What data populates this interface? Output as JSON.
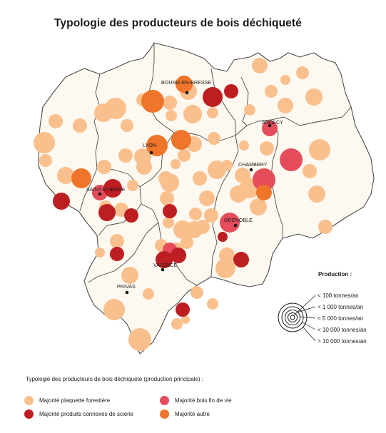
{
  "title": "Typologie des producteurs de bois déchiqueté",
  "colors": {
    "land": "#fdf8f0",
    "border": "#4a4a4a",
    "forestiere": "#f9c08e",
    "connexes": "#bd1e22",
    "fin_de_vie": "#e54d5c",
    "autre": "#ee7529"
  },
  "cities": [
    {
      "name": "BOURG-EN-BRESSE"
    },
    {
      "name": "ANNECY"
    },
    {
      "name": "LYON"
    },
    {
      "name": "CHAMBERY"
    },
    {
      "name": "SAINT-ETIENNE"
    },
    {
      "name": "GRENOBLE"
    },
    {
      "name": "VALENCE"
    },
    {
      "name": "PRIVAS"
    }
  ],
  "production_legend": {
    "title": "Production :",
    "classes": [
      "< 100 tonnes/an",
      "< 1 000 tonnes/an",
      "< 5 000 tonnes/an",
      "< 10 000 tonnes/an",
      "> 10 000 tonnes/an"
    ]
  },
  "typology_legend": {
    "title": "Typologie des producteurs de bois déchiqueté (production principale) :",
    "items": [
      {
        "label": "Majorité plaquette forestière",
        "color": "#f9c08e"
      },
      {
        "label": "Majorité bois fin de vie",
        "color": "#e54d5c"
      },
      {
        "label": "Majorité produits connexes de scierie",
        "color": "#bd1e22"
      },
      {
        "label": "Majorité autre",
        "color": "#ee7529"
      }
    ]
  }
}
